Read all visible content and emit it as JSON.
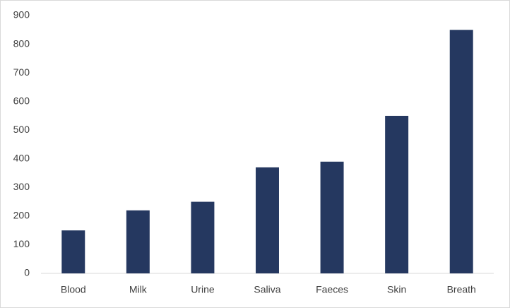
{
  "chart_data": {
    "type": "bar",
    "categories": [
      "Blood",
      "Milk",
      "Urine",
      "Saliva",
      "Faeces",
      "Skin",
      "Breath"
    ],
    "values": [
      150,
      220,
      250,
      370,
      390,
      550,
      850
    ],
    "color": "#253860",
    "ylim": [
      0,
      900
    ],
    "yticks": [
      0,
      100,
      200,
      300,
      400,
      500,
      600,
      700,
      800,
      900
    ],
    "grid": false
  }
}
